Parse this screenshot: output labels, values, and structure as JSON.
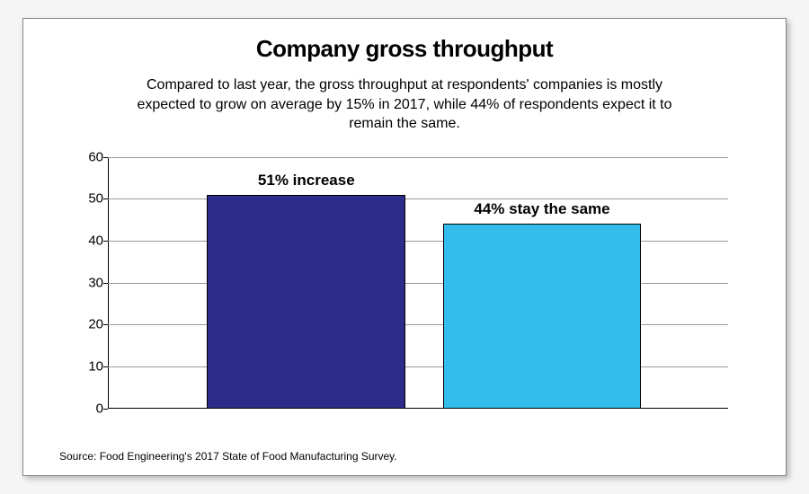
{
  "title": "Company gross throughput",
  "subtitle": "Compared to last year, the gross throughput at respondents' companies is mostly expected to grow on average by 15% in 2017, while 44% of respondents expect it to remain the same.",
  "source": "Source: Food Engineering's 2017 State of Food Manufacturing Survey.",
  "chart": {
    "type": "bar",
    "ylim": [
      0,
      60
    ],
    "ytick_step": 10,
    "yticks": [
      0,
      10,
      20,
      30,
      40,
      50,
      60
    ],
    "grid_color": "#999999",
    "axis_color": "#000000",
    "background_color": "#ffffff",
    "tick_fontsize": 15,
    "label_fontsize": 17,
    "title_fontsize": 26,
    "subtitle_fontsize": 16,
    "bars": [
      {
        "label": "51% increase",
        "value": 51,
        "color": "#2e2c8a",
        "x_pct": 16,
        "width_pct": 32
      },
      {
        "label": "44% stay the same",
        "value": 44,
        "color": "#33bdec",
        "x_pct": 54,
        "width_pct": 32
      }
    ]
  }
}
